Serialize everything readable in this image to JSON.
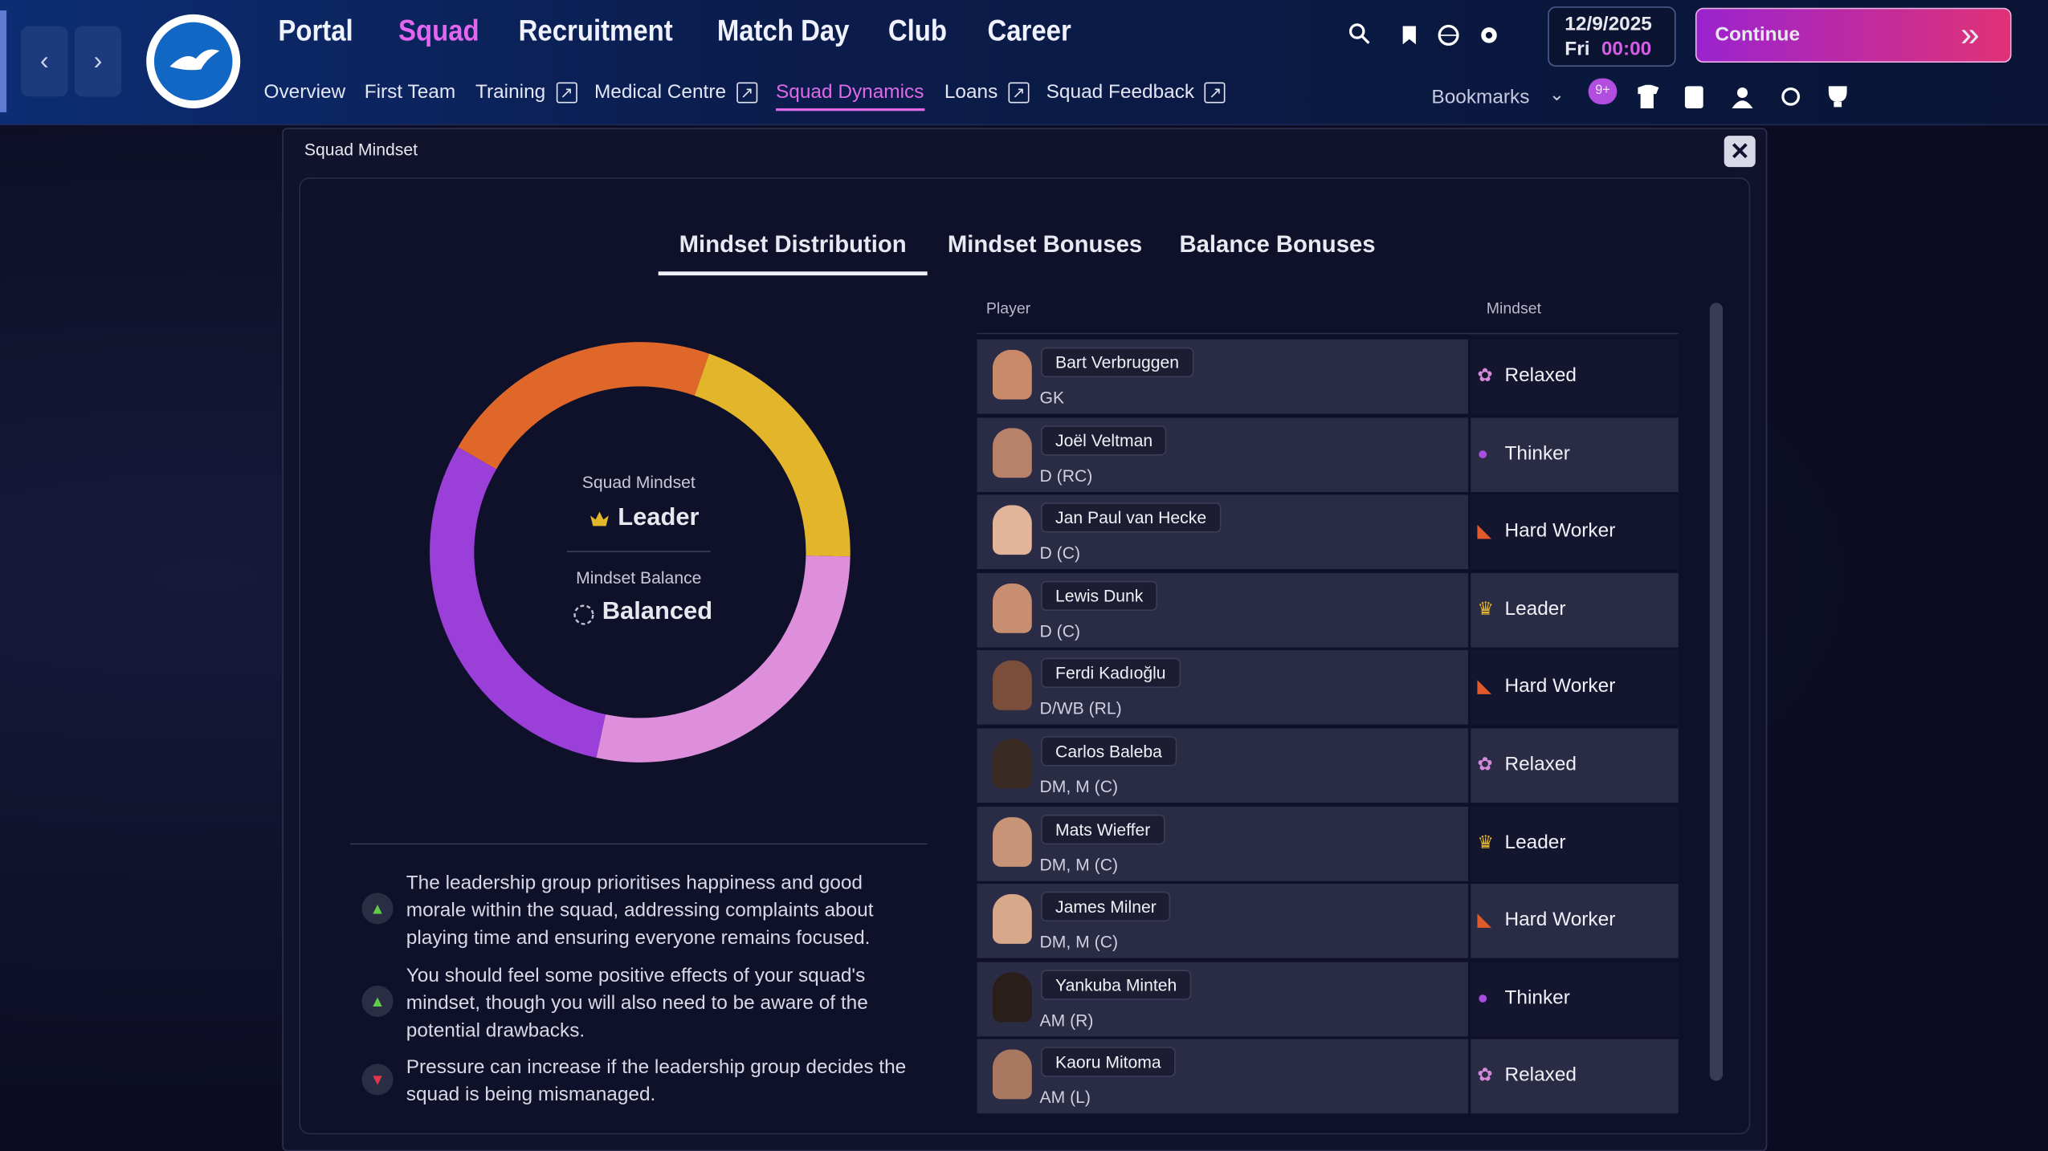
{
  "nav": {
    "main_tabs": [
      "Portal",
      "Squad",
      "Recruitment",
      "Match Day",
      "Club",
      "Career"
    ],
    "active_main": 1,
    "sub_tabs": [
      "Overview",
      "First Team",
      "Training",
      "Medical Centre",
      "Squad Dynamics",
      "Loans",
      "Squad Feedback"
    ],
    "active_sub": 4,
    "date": "12/9/2025",
    "day": "Fri",
    "time": "00:00",
    "continue": "Continue",
    "bookmarks": "Bookmarks",
    "badge": "9+"
  },
  "modal": {
    "title": "Squad Mindset",
    "tabs": [
      "Mindset Distribution",
      "Mindset Bonuses",
      "Balance Bonuses"
    ],
    "active_tab": 0,
    "donut": {
      "segments": [
        {
          "color": "#e0672a",
          "value": 22
        },
        {
          "color": "#e2b52a",
          "value": 20
        },
        {
          "color": "#dd8fdc",
          "value": 28
        },
        {
          "color": "#9a3fd8",
          "value": 30
        }
      ],
      "mindset_label": "Squad Mindset",
      "mindset": "Leader",
      "balance_label": "Mindset Balance",
      "balance": "Balanced"
    },
    "notes": [
      {
        "kind": "positive",
        "text": "The leadership group prioritises happiness and good morale within the squad, addressing complaints about playing time and ensuring everyone remains focused."
      },
      {
        "kind": "positive",
        "text": "You should feel some positive effects of your squad's mindset, though you will also need to be aware of the potential drawbacks."
      },
      {
        "kind": "negative",
        "text": "Pressure can increase if the leadership group decides the squad is being mismanaged."
      }
    ],
    "table": {
      "headers": [
        "Player",
        "Mindset"
      ],
      "rows": [
        {
          "name": "Bart Verbruggen",
          "position": "GK",
          "mindset": "Relaxed"
        },
        {
          "name": "Joël Veltman",
          "position": "D (RC)",
          "mindset": "Thinker"
        },
        {
          "name": "Jan Paul van Hecke",
          "position": "D (C)",
          "mindset": "Hard Worker"
        },
        {
          "name": "Lewis Dunk",
          "position": "D (C)",
          "mindset": "Leader"
        },
        {
          "name": "Ferdi Kadıoğlu",
          "position": "D/WB (RL)",
          "mindset": "Hard Worker"
        },
        {
          "name": "Carlos Baleba",
          "position": "DM, M (C)",
          "mindset": "Relaxed"
        },
        {
          "name": "Mats Wieffer",
          "position": "DM, M (C)",
          "mindset": "Leader"
        },
        {
          "name": "James Milner",
          "position": "DM, M (C)",
          "mindset": "Hard Worker"
        },
        {
          "name": "Yankuba Minteh",
          "position": "AM (R)",
          "mindset": "Thinker"
        },
        {
          "name": "Kaoru Mitoma",
          "position": "AM (L)",
          "mindset": "Relaxed"
        }
      ]
    }
  }
}
